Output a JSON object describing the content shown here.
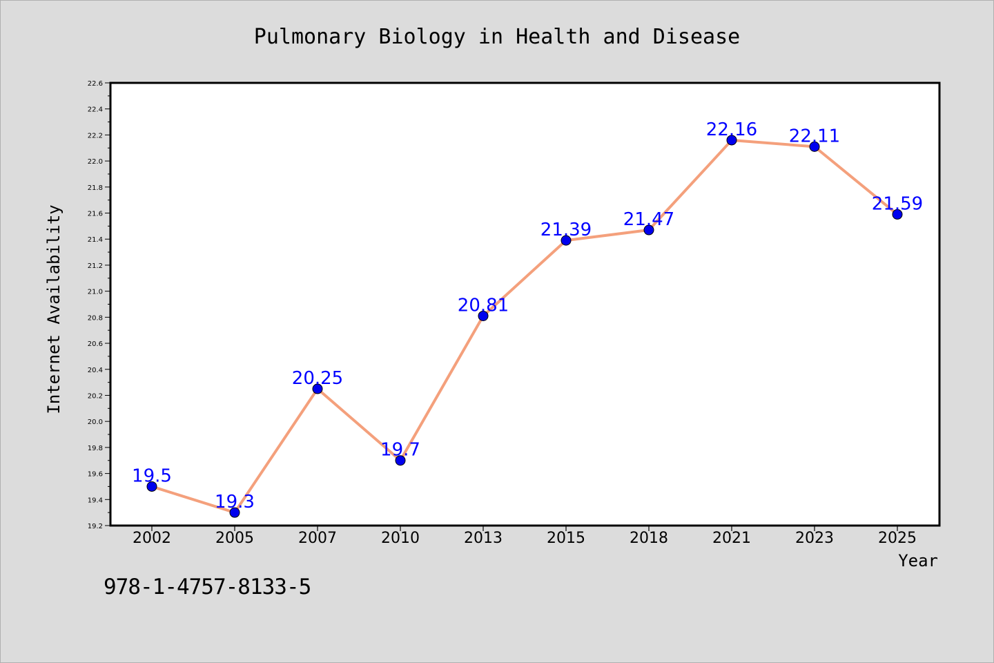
{
  "chart_data": {
    "type": "line",
    "title": "Pulmonary Biology in Health and Disease",
    "xlabel": "Year",
    "ylabel": "Internet Availability",
    "categories": [
      "2002",
      "2005",
      "2007",
      "2010",
      "2013",
      "2015",
      "2018",
      "2021",
      "2023",
      "2025"
    ],
    "series": [
      {
        "values": [
          19.5,
          19.3,
          20.25,
          19.7,
          20.81,
          21.39,
          21.47,
          22.16,
          22.11,
          21.59
        ],
        "labels": [
          "19.5",
          "19.3",
          "20.25",
          "19.7",
          "20.81",
          "21.39",
          "21.47",
          "22.16",
          "22.11",
          "21.59"
        ],
        "line_color": "#f4a07c",
        "marker_color": "#0000ee",
        "label_color": "#0000ff"
      }
    ],
    "ylim": [
      19.2,
      22.6
    ],
    "yticks": [
      "19.2",
      "19.4",
      "19.6",
      "19.8",
      "20.0",
      "20.2",
      "20.4",
      "20.6",
      "20.8",
      "21.0",
      "21.2",
      "21.4",
      "21.6",
      "21.8",
      "22.0",
      "22.2",
      "22.4",
      "22.6"
    ],
    "grid": false,
    "legend": "none"
  },
  "footer": {
    "isbn": "978-1-4757-8133-5"
  }
}
